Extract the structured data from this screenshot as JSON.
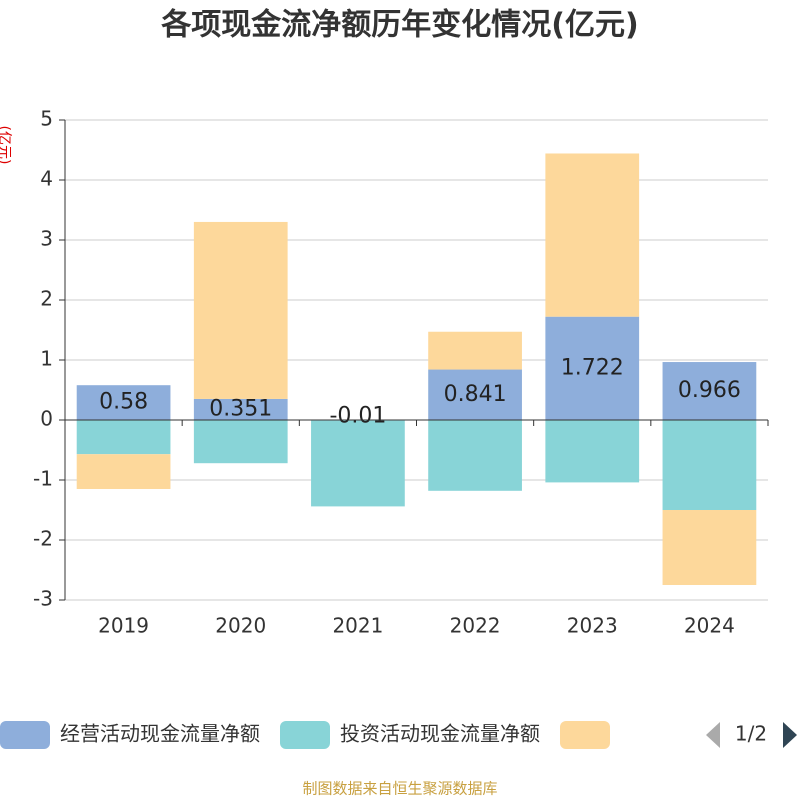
{
  "chart_data": {
    "type": "bar",
    "stacked": true,
    "title": "各项现金流净额历年变化情况(亿元)",
    "y_label": "(亿元)",
    "categories": [
      "2019",
      "2020",
      "2021",
      "2022",
      "2023",
      "2024"
    ],
    "series": [
      {
        "name": "经营活动现金流量净额",
        "color": "#8eaedb",
        "values": [
          0.58,
          0.351,
          -0.01,
          0.841,
          1.722,
          0.966
        ]
      },
      {
        "name": "投资活动现金流量净额",
        "color": "#88d4d7",
        "values": [
          -0.57,
          -0.72,
          -1.43,
          -1.18,
          -1.04,
          -1.5
        ]
      },
      {
        "color": "#fdd89b",
        "values": [
          -0.58,
          2.95,
          0,
          0.63,
          2.72,
          -1.25
        ]
      }
    ],
    "ylim": [
      -3,
      5
    ],
    "yticks": [
      -3,
      -2,
      -1,
      0,
      1,
      2,
      3,
      4,
      5
    ],
    "grid": true,
    "legend_page": "1/2",
    "source": "制图数据来自恒生聚源数据库"
  }
}
